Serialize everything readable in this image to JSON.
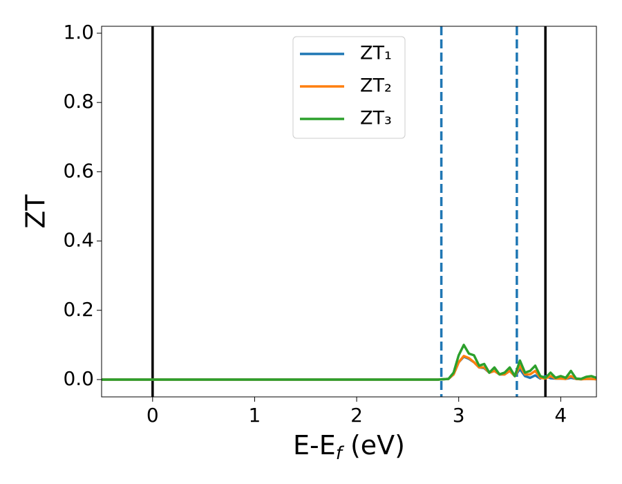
{
  "chart_data": {
    "type": "line",
    "xlabel": "E-Ef (eV)",
    "ylabel": "ZT",
    "xlim": [
      -0.5,
      4.35
    ],
    "ylim": [
      -0.05,
      1.02
    ],
    "xticks": [
      0,
      1,
      2,
      3,
      4
    ],
    "yticks": [
      {
        "value": 0,
        "label": "0.0"
      },
      {
        "value": 0.2,
        "label": "0.2"
      },
      {
        "value": 0.4,
        "label": "0.4"
      },
      {
        "value": 0.6,
        "label": "0.6"
      },
      {
        "value": 0.8,
        "label": "0.8"
      },
      {
        "value": 1,
        "label": "1.0"
      }
    ],
    "grid": false,
    "legend": "upper center",
    "vlines": [
      {
        "x": 0,
        "color": "#000000",
        "style": "solid"
      },
      {
        "x": 3.85,
        "color": "#000000",
        "style": "solid"
      },
      {
        "x": 2.83,
        "color": "#1f77b4",
        "style": "dashed"
      },
      {
        "x": 3.57,
        "color": "#1f77b4",
        "style": "dashed"
      }
    ],
    "x": [
      -0.5,
      2.8,
      2.9,
      2.95,
      3.0,
      3.05,
      3.1,
      3.15,
      3.2,
      3.25,
      3.3,
      3.35,
      3.4,
      3.45,
      3.5,
      3.55,
      3.6,
      3.65,
      3.7,
      3.75,
      3.8,
      3.85,
      3.9,
      3.95,
      4.0,
      4.05,
      4.1,
      4.15,
      4.2,
      4.25,
      4.3,
      4.35
    ],
    "series": [
      {
        "name": "ZT₁",
        "color": "#1f77b4",
        "values": [
          0,
          0,
          0.002,
          0.015,
          0.05,
          0.066,
          0.06,
          0.05,
          0.035,
          0.033,
          0.02,
          0.025,
          0.015,
          0.015,
          0.025,
          0.01,
          0.03,
          0.01,
          0.005,
          0.012,
          0.003,
          0.01,
          0.004,
          0.003,
          0.003,
          0.002,
          0.005,
          0.002,
          0.001,
          0.002,
          0.002,
          0.001
        ]
      },
      {
        "name": "ZT₂",
        "color": "#ff7f0e",
        "values": [
          0,
          0,
          0.002,
          0.015,
          0.05,
          0.068,
          0.062,
          0.05,
          0.035,
          0.035,
          0.02,
          0.025,
          0.015,
          0.015,
          0.025,
          0.01,
          0.04,
          0.015,
          0.015,
          0.025,
          0.005,
          0.003,
          0.01,
          0.003,
          0.003,
          0.002,
          0.01,
          0.002,
          0.001,
          0.002,
          0.002,
          0.001
        ]
      },
      {
        "name": "ZT₃",
        "color": "#2ca02c",
        "values": [
          0,
          0,
          0.002,
          0.02,
          0.07,
          0.1,
          0.075,
          0.07,
          0.04,
          0.045,
          0.02,
          0.035,
          0.015,
          0.02,
          0.035,
          0.01,
          0.055,
          0.02,
          0.025,
          0.04,
          0.01,
          0.005,
          0.02,
          0.005,
          0.01,
          0.005,
          0.025,
          0.003,
          0.002,
          0.008,
          0.01,
          0.005
        ]
      }
    ]
  }
}
